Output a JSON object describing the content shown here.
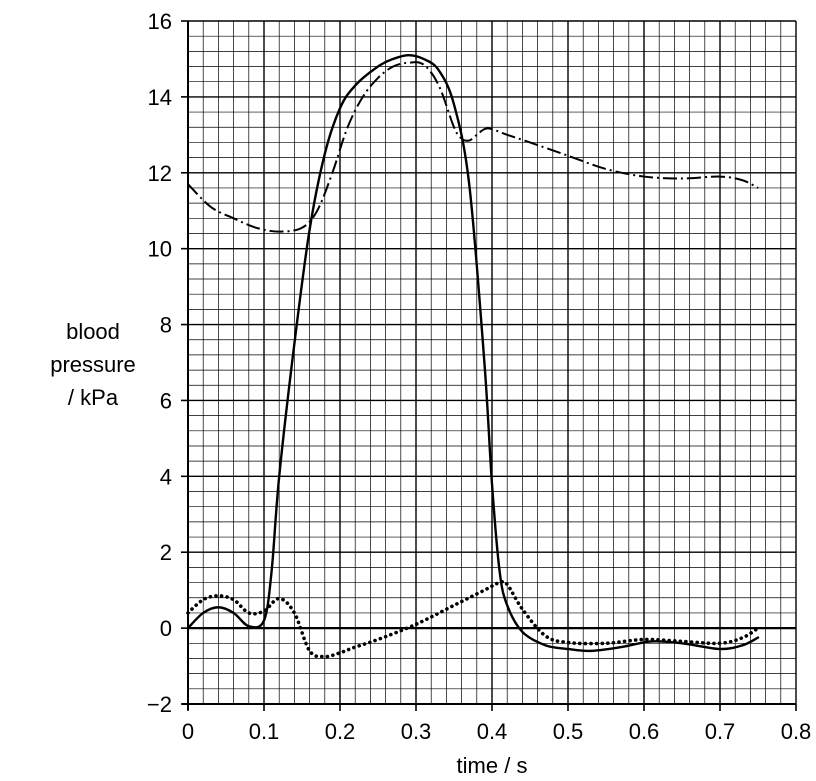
{
  "chart_data": {
    "type": "line",
    "xlabel": "time / s",
    "ylabel": [
      "blood",
      "pressure",
      "/ kPa"
    ],
    "xlim": [
      0,
      0.8
    ],
    "ylim": [
      -2,
      16
    ],
    "xticks": [
      "0",
      "0.1",
      "0.2",
      "0.3",
      "0.4",
      "0.5",
      "0.6",
      "0.7",
      "0.8"
    ],
    "yticks": [
      "−2",
      "0",
      "2",
      "4",
      "6",
      "8",
      "10",
      "12",
      "14",
      "16"
    ],
    "grid": true,
    "series": [
      {
        "style": "solid",
        "x": [
          0,
          0.02,
          0.04,
          0.06,
          0.08,
          0.1,
          0.11,
          0.12,
          0.14,
          0.16,
          0.18,
          0.2,
          0.22,
          0.25,
          0.27,
          0.29,
          0.31,
          0.33,
          0.35,
          0.37,
          0.39,
          0.4,
          0.41,
          0.42,
          0.44,
          0.47,
          0.5,
          0.53,
          0.57,
          0.61,
          0.65,
          0.7,
          0.73,
          0.75
        ],
        "y": [
          0,
          0.4,
          0.55,
          0.4,
          0.05,
          0.2,
          1.5,
          4,
          7.5,
          10.5,
          12.5,
          13.7,
          14.3,
          14.8,
          15.0,
          15.1,
          15.0,
          14.7,
          13.8,
          11.7,
          7.0,
          3.8,
          1.5,
          0.6,
          -0.1,
          -0.45,
          -0.55,
          -0.6,
          -0.5,
          -0.35,
          -0.4,
          -0.55,
          -0.45,
          -0.25
        ]
      },
      {
        "style": "dash-dot",
        "x": [
          0,
          0.03,
          0.06,
          0.09,
          0.12,
          0.15,
          0.17,
          0.19,
          0.21,
          0.23,
          0.25,
          0.27,
          0.29,
          0.31,
          0.33,
          0.35,
          0.36,
          0.37,
          0.38,
          0.39,
          0.4,
          0.42,
          0.45,
          0.5,
          0.55,
          0.6,
          0.65,
          0.7,
          0.73,
          0.75
        ],
        "y": [
          11.7,
          11.1,
          10.8,
          10.55,
          10.45,
          10.55,
          11.0,
          12.0,
          13.2,
          14.0,
          14.5,
          14.8,
          14.9,
          14.85,
          14.3,
          13.2,
          12.9,
          12.85,
          13.0,
          13.15,
          13.15,
          13.0,
          12.8,
          12.45,
          12.1,
          11.9,
          11.85,
          11.9,
          11.8,
          11.6
        ]
      },
      {
        "style": "dotted",
        "x": [
          0,
          0.02,
          0.04,
          0.06,
          0.08,
          0.1,
          0.12,
          0.14,
          0.16,
          0.18,
          0.2,
          0.22,
          0.25,
          0.3,
          0.35,
          0.39,
          0.41,
          0.42,
          0.44,
          0.47,
          0.5,
          0.55,
          0.6,
          0.65,
          0.7,
          0.73,
          0.75
        ],
        "y": [
          0.4,
          0.75,
          0.85,
          0.75,
          0.4,
          0.45,
          0.78,
          0.4,
          -0.6,
          -0.75,
          -0.65,
          -0.5,
          -0.3,
          0.1,
          0.6,
          1.0,
          1.2,
          1.15,
          0.5,
          -0.2,
          -0.38,
          -0.4,
          -0.3,
          -0.35,
          -0.4,
          -0.25,
          0
        ]
      }
    ]
  }
}
